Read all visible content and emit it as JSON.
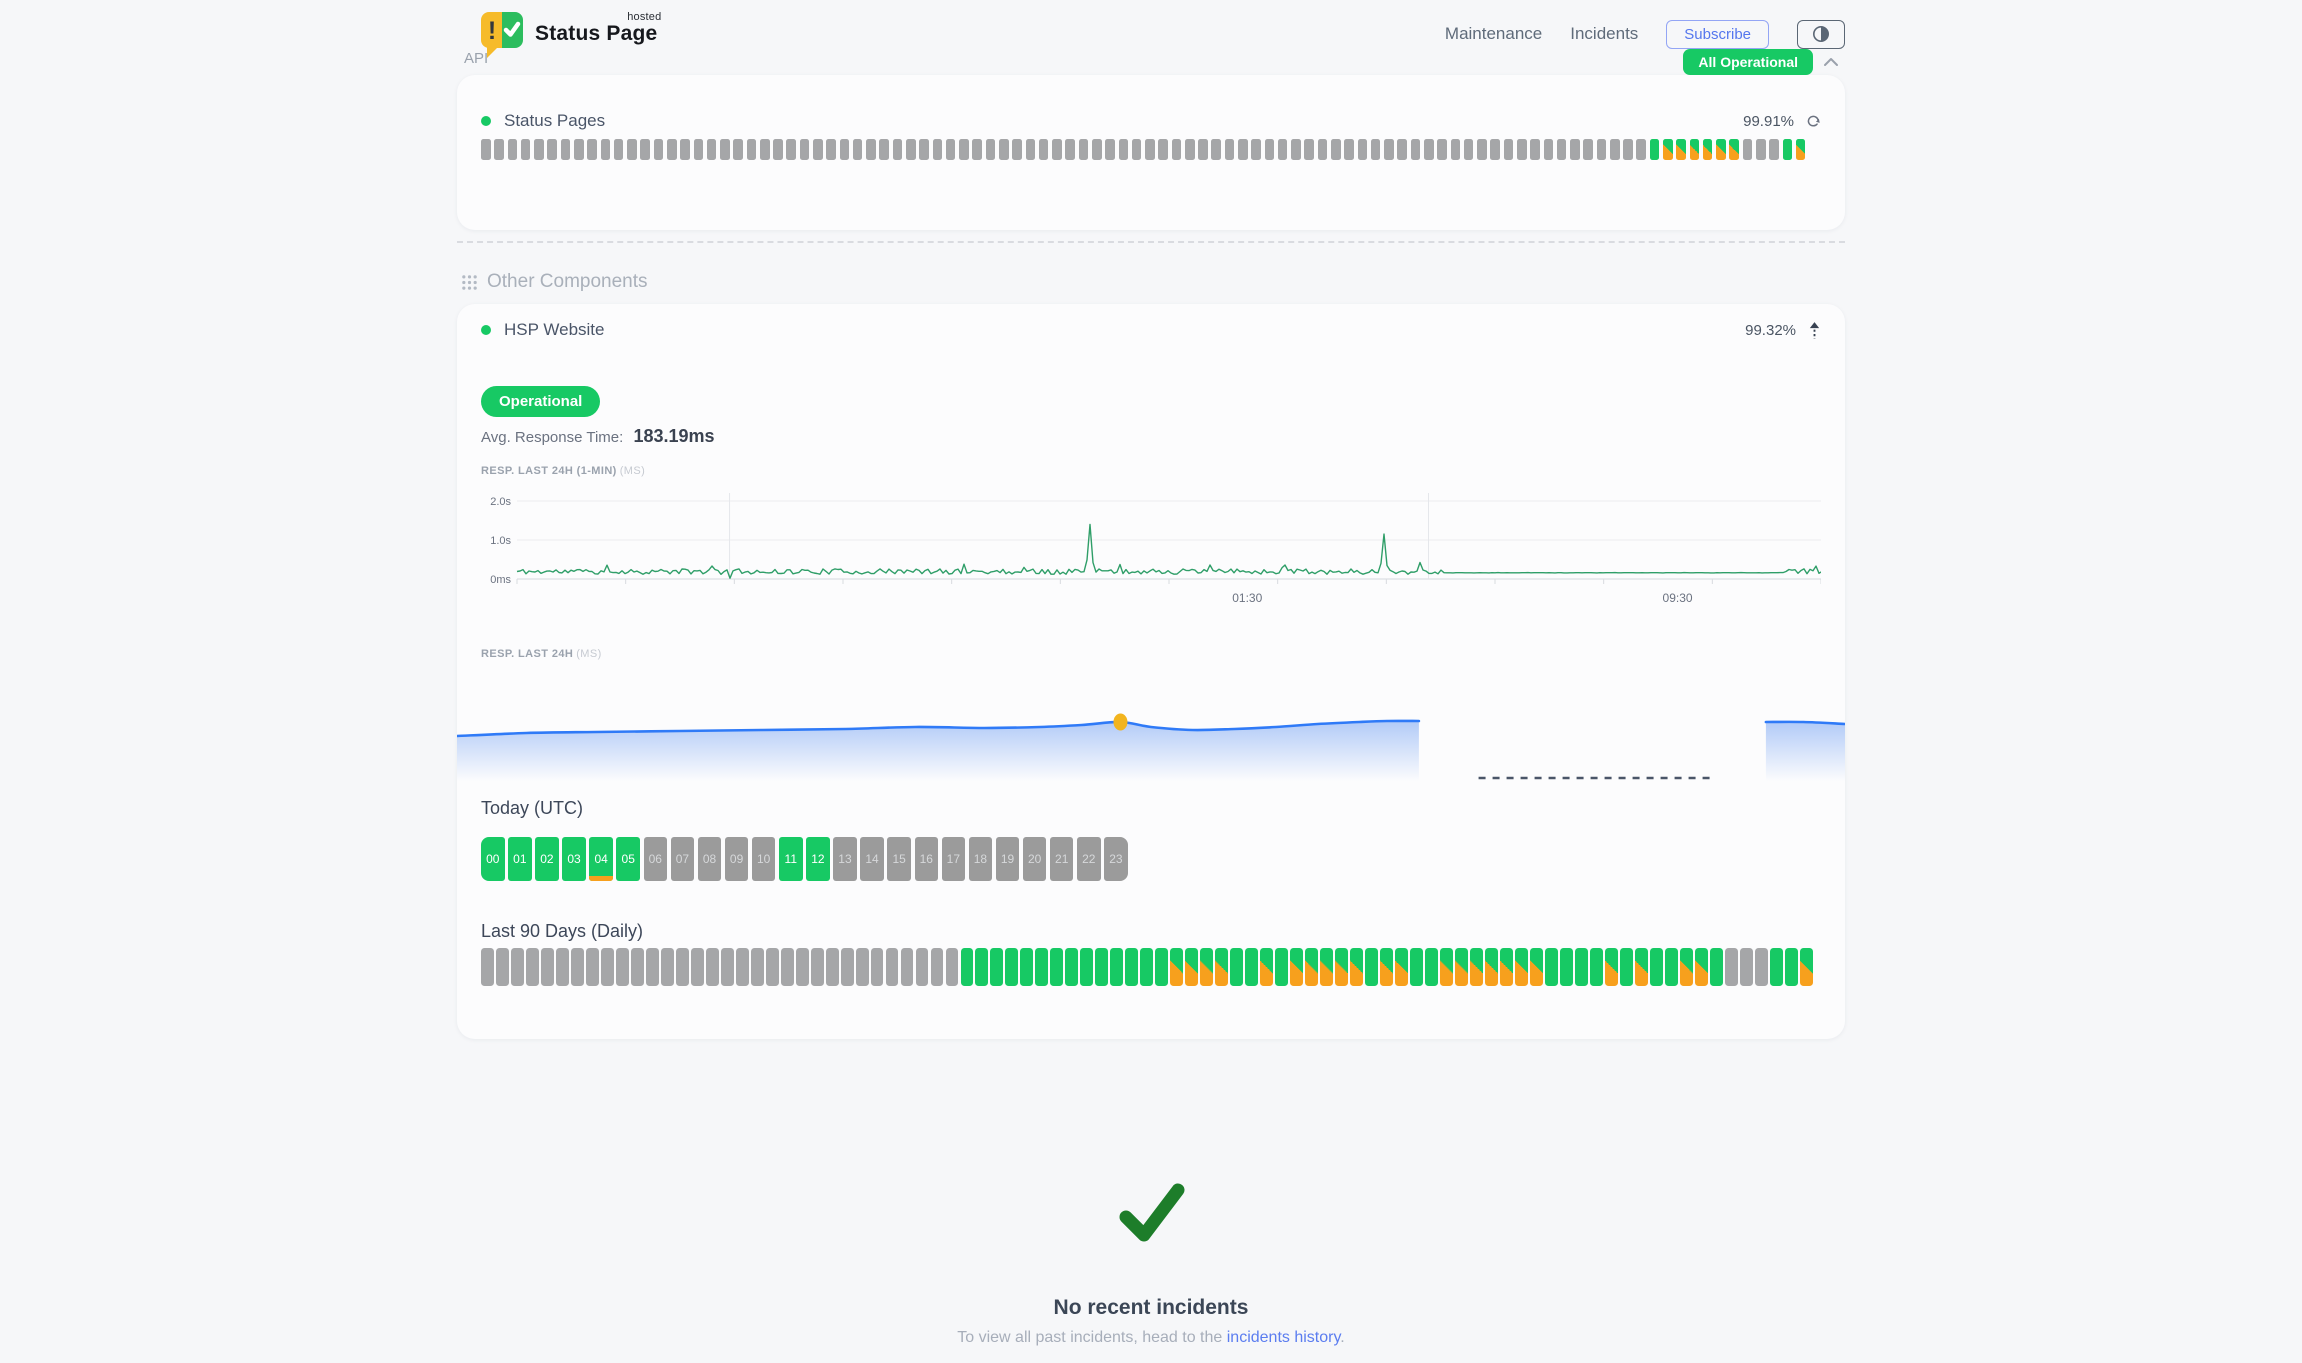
{
  "header": {
    "brand": {
      "name": "Status Page",
      "superscript": "hosted"
    },
    "nav": [
      {
        "label": "Maintenance"
      },
      {
        "label": "Incidents"
      }
    ],
    "subscribe_label": "Subscribe",
    "overall_status": {
      "label": "All Operational",
      "color": "#17c964"
    }
  },
  "api_section": {
    "title": "API",
    "component": {
      "name": "Status Pages",
      "uptime_pct": "99.91%",
      "bars": "nnnnnnnnnnnnnnnnnnnnnnnnnnnnnnnnnnnnnnnnnnnnnnnnnnnnnnnnnnnnnnnnnnnnnnnnnnnnnnnnnnnnnnnnummmmmmnnnum",
      "legend": {
        "n": "no-data-gray",
        "u": "operational-green",
        "m": "partial-degraded-orange-green"
      }
    }
  },
  "other_components": {
    "title": "Other Components",
    "component": {
      "name": "HSP Website",
      "uptime_pct": "99.32%",
      "status_badge": "Operational",
      "avg_response_label": "Avg. Response Time:",
      "avg_response_value": "183.19ms"
    }
  },
  "chart_data": [
    {
      "type": "line",
      "title": "RESP. LAST 24H (1-MIN)",
      "unit": "(MS)",
      "line_color": "#2f9e68",
      "y_ticks": [
        {
          "label": "0ms",
          "ms": 0
        },
        {
          "label": "1.0s",
          "ms": 1000
        },
        {
          "label": "2.0s",
          "ms": 2000
        }
      ],
      "ylim_ms": [
        0,
        2400
      ],
      "x_tick_labels": [
        {
          "label": "01:30",
          "pos": 0.56
        },
        {
          "label": "09:30",
          "pos": 0.89
        }
      ],
      "vertical_gridlines": [
        0.163,
        0.699
      ],
      "baseline_ms": 170,
      "noise_ms": 140,
      "spikes": [
        {
          "pos": 0.44,
          "ms": 1400
        },
        {
          "pos": 0.664,
          "ms": 1150
        }
      ],
      "dips": [
        {
          "pos": 0.164,
          "ms": 20
        }
      ],
      "flat_segment": {
        "from": 0.71,
        "to": 0.968,
        "ms": 160
      }
    },
    {
      "type": "area",
      "title": "RESP. LAST 24H",
      "unit": "(MS)",
      "line_color": "#2f7af7",
      "marker": {
        "pos": 0.478,
        "color": "#f2b41e"
      },
      "segments": [
        {
          "points": [
            [
              0,
              63
            ],
            [
              0.05,
              60
            ],
            [
              0.1,
              59
            ],
            [
              0.16,
              58
            ],
            [
              0.22,
              57
            ],
            [
              0.28,
              56
            ],
            [
              0.33,
              54
            ],
            [
              0.38,
              55
            ],
            [
              0.42,
              54
            ],
            [
              0.45,
              52
            ],
            [
              0.478,
              49
            ],
            [
              0.5,
              54
            ],
            [
              0.53,
              57
            ],
            [
              0.56,
              56
            ],
            [
              0.59,
              54
            ],
            [
              0.62,
              51
            ],
            [
              0.65,
              49
            ],
            [
              0.67,
              48
            ],
            [
              0.693,
              48
            ]
          ]
        },
        {
          "points": [
            [
              0.943,
              49
            ],
            [
              0.97,
              49
            ],
            [
              1,
              51
            ]
          ]
        }
      ],
      "gap_dashed_line": {
        "from": 0.736,
        "to": 0.905
      }
    }
  ],
  "today": {
    "title": "Today (UTC)",
    "hours": [
      {
        "label": "00",
        "state": "up"
      },
      {
        "label": "01",
        "state": "up"
      },
      {
        "label": "02",
        "state": "up"
      },
      {
        "label": "03",
        "state": "up"
      },
      {
        "label": "04",
        "state": "up",
        "partial": true
      },
      {
        "label": "05",
        "state": "up"
      },
      {
        "label": "06",
        "state": "none"
      },
      {
        "label": "07",
        "state": "none"
      },
      {
        "label": "08",
        "state": "none"
      },
      {
        "label": "09",
        "state": "none"
      },
      {
        "label": "10",
        "state": "none"
      },
      {
        "label": "11",
        "state": "up"
      },
      {
        "label": "12",
        "state": "up"
      },
      {
        "label": "13",
        "state": "none"
      },
      {
        "label": "14",
        "state": "none"
      },
      {
        "label": "15",
        "state": "none"
      },
      {
        "label": "16",
        "state": "none"
      },
      {
        "label": "17",
        "state": "none"
      },
      {
        "label": "18",
        "state": "none"
      },
      {
        "label": "19",
        "state": "none"
      },
      {
        "label": "20",
        "state": "none"
      },
      {
        "label": "21",
        "state": "none"
      },
      {
        "label": "22",
        "state": "none"
      },
      {
        "label": "23",
        "state": "none"
      }
    ]
  },
  "last90": {
    "title": "Last 90 Days (Daily)",
    "bars": "nnnnnnnnnnnnnnnnnnnnnnnnnnnnnnnnuuuuuuuuuuuuuummmmuumummmmmummuummmmmmmuuuumumuummunnnuum"
  },
  "incidents": {
    "title": "No recent incidents",
    "subtitle_prefix": "To view all past incidents, head to the ",
    "link_label": "incidents history",
    "suffix": "."
  },
  "colors": {
    "up_green": "#17c964",
    "partial_orange": "#f7a01d",
    "none_gray": "#a5a6a8",
    "accent_blue": "#5b7df0",
    "chart_green": "#2f9e68",
    "chart_blue": "#2f7af7",
    "check_green": "#1d7d2a"
  }
}
